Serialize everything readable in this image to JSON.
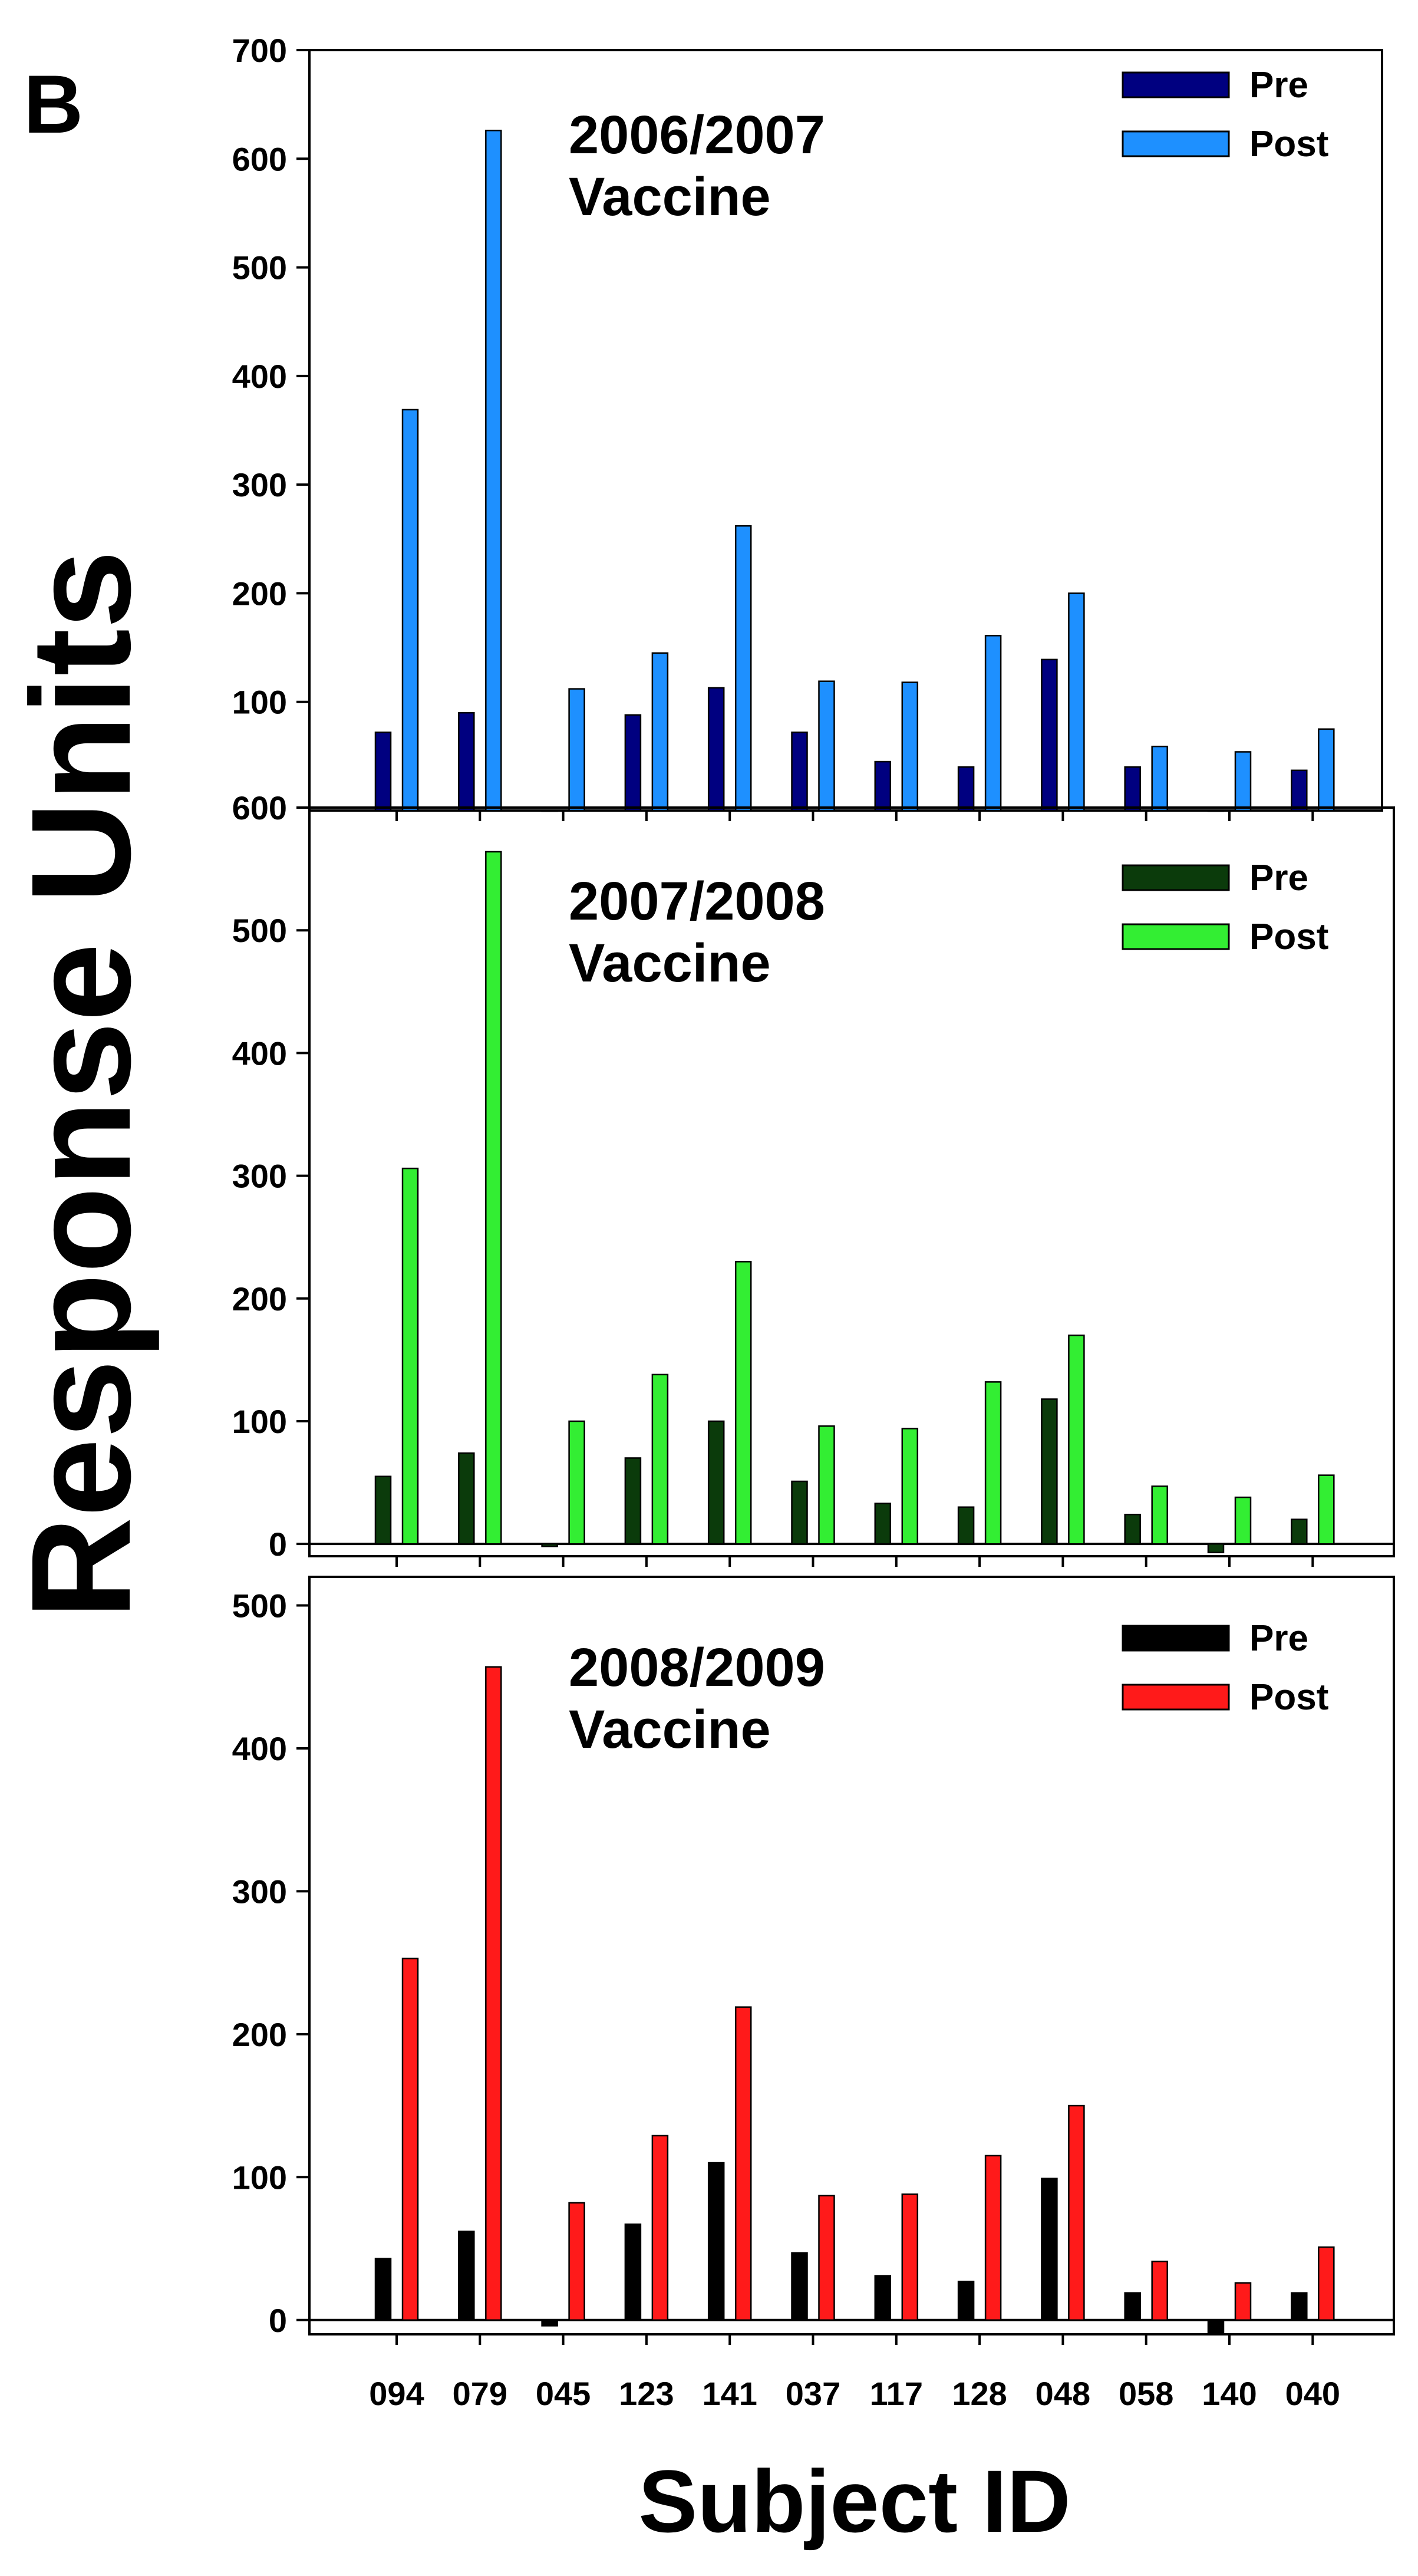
{
  "figure": {
    "panel_letter": "B",
    "ylabel": "Response Units",
    "xlabel": "Subject ID"
  },
  "chart_data": [
    {
      "type": "bar",
      "title": "2006/2007\nVaccine",
      "categories": [
        "094",
        "079",
        "045",
        "123",
        "141",
        "037",
        "117",
        "128",
        "048",
        "058",
        "140",
        "040"
      ],
      "ylim": [
        0,
        700
      ],
      "yticks": [
        100,
        200,
        300,
        400,
        500,
        600,
        700
      ],
      "series": [
        {
          "name": "Pre",
          "color": "#000080",
          "values": [
            72,
            90,
            0,
            88,
            113,
            72,
            45,
            40,
            139,
            40,
            0,
            37
          ]
        },
        {
          "name": "Post",
          "color": "#1E90FF",
          "values": [
            369,
            626,
            112,
            145,
            262,
            119,
            118,
            161,
            200,
            59,
            54,
            75
          ]
        }
      ],
      "legend": "top-right",
      "grid": false
    },
    {
      "type": "bar",
      "title": "2007/2008\nVaccine",
      "categories": [
        "094",
        "079",
        "045",
        "123",
        "141",
        "037",
        "117",
        "128",
        "048",
        "058",
        "140",
        "040"
      ],
      "ylim": [
        -10,
        600
      ],
      "yticks": [
        0,
        100,
        200,
        300,
        400,
        500,
        600
      ],
      "series": [
        {
          "name": "Pre",
          "color": "#0B3B0B",
          "values": [
            55,
            74,
            -2,
            70,
            100,
            51,
            33,
            30,
            118,
            24,
            -7,
            20
          ]
        },
        {
          "name": "Post",
          "color": "#33EE33",
          "values": [
            306,
            564,
            100,
            138,
            230,
            96,
            94,
            132,
            170,
            47,
            38,
            56
          ]
        }
      ],
      "legend": "top-right",
      "grid": false
    },
    {
      "type": "bar",
      "title": "2008/2009\nVaccine",
      "categories": [
        "094",
        "079",
        "045",
        "123",
        "141",
        "037",
        "117",
        "128",
        "048",
        "058",
        "140",
        "040"
      ],
      "ylim": [
        -10,
        520
      ],
      "yticks": [
        0,
        100,
        200,
        300,
        400,
        500
      ],
      "series": [
        {
          "name": "Pre",
          "color": "#000000",
          "values": [
            43,
            62,
            -4,
            67,
            110,
            47,
            31,
            27,
            99,
            19,
            -10,
            19
          ]
        },
        {
          "name": "Post",
          "color": "#FF1A1A",
          "values": [
            253,
            457,
            82,
            129,
            219,
            87,
            88,
            115,
            150,
            41,
            26,
            51
          ]
        }
      ],
      "legend": "top-right",
      "grid": false
    }
  ]
}
